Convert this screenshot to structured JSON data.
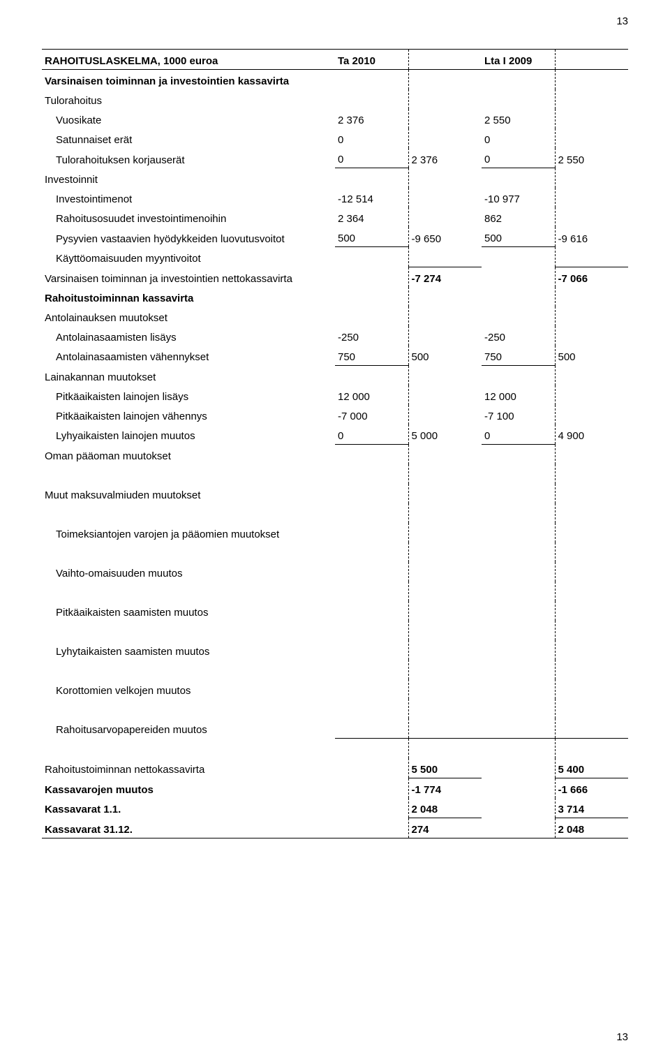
{
  "page_number_top": "13",
  "page_number_bottom": "13",
  "header": {
    "title": "RAHOITUSLASKELMA, 1000 euroa",
    "col1": "Ta 2010",
    "col2": "Lta I 2009"
  },
  "rows": {
    "r1": {
      "label": "Varsinaisen toiminnan ja investointien kassavirta"
    },
    "r2": {
      "label": "Tulorahoitus"
    },
    "r3": {
      "label": "Vuosikate",
      "c1": "2 376",
      "c3": "2 550"
    },
    "r4": {
      "label": "Satunnaiset erät",
      "c1": "0",
      "c3": "0"
    },
    "r5": {
      "label": "Tulorahoituksen korjauserät",
      "c1": "0",
      "c2": "2 376",
      "c3": "0",
      "c4": "2 550"
    },
    "r6": {
      "label": "Investoinnit"
    },
    "r7": {
      "label": "Investointimenot",
      "c1": "-12 514",
      "c3": "-10 977"
    },
    "r8": {
      "label": "Rahoitusosuudet investointimenoihin",
      "c1": "2 364",
      "c3": "862"
    },
    "r9": {
      "label": "Pysyvien vastaavien hyödykkeiden luovutusvoitot",
      "c1": "500",
      "c2": "-9 650",
      "c3": "500",
      "c4": "-9 616"
    },
    "r10": {
      "label": "Käyttöomaisuuden myyntivoitot"
    },
    "r11": {
      "label": "Varsinaisen toiminnan ja investointien nettokassavirta",
      "c2": "-7 274",
      "c4": "-7 066"
    },
    "r12": {
      "label": "Rahoitustoiminnan kassavirta"
    },
    "r13": {
      "label": "Antolainauksen muutokset"
    },
    "r14": {
      "label": "Antolainasaamisten lisäys",
      "c1": "-250",
      "c3": "-250"
    },
    "r15": {
      "label": "Antolainasaamisten vähennykset",
      "c1": "750",
      "c2": "500",
      "c3": "750",
      "c4": "500"
    },
    "r16": {
      "label": "Lainakannan muutokset"
    },
    "r17": {
      "label": "Pitkäaikaisten lainojen lisäys",
      "c1": "12 000",
      "c3": "12 000"
    },
    "r18": {
      "label": "Pitkäaikaisten lainojen vähennys",
      "c1": "-7 000",
      "c3": "-7 100"
    },
    "r19": {
      "label": "Lyhyaikaisten lainojen muutos",
      "c1": "0",
      "c2": "5 000",
      "c3": "0",
      "c4": "4 900"
    },
    "r20": {
      "label": "Oman pääoman muutokset"
    },
    "r21": {
      "label": "Muut maksuvalmiuden muutokset"
    },
    "r22": {
      "label": "Toimeksiantojen varojen ja pääomien muutokset"
    },
    "r23": {
      "label": "Vaihto-omaisuuden muutos"
    },
    "r24": {
      "label": "Pitkäaikaisten saamisten muutos"
    },
    "r25": {
      "label": "Lyhytaikaisten saamisten muutos"
    },
    "r26": {
      "label": "Korottomien velkojen muutos"
    },
    "r27": {
      "label": "Rahoitusarvopapereiden muutos"
    },
    "r28": {
      "label": "Rahoitustoiminnan nettokassavirta",
      "c2": "5 500",
      "c4": "5 400"
    },
    "r29": {
      "label": "Kassavarojen muutos",
      "c2": "-1 774",
      "c4": "-1 666"
    },
    "r30": {
      "label": "Kassavarat 1.1.",
      "c2": "2 048",
      "c4": "3 714"
    },
    "r31": {
      "label": "Kassavarat 31.12.",
      "c2": "274",
      "c4": "2 048"
    }
  }
}
